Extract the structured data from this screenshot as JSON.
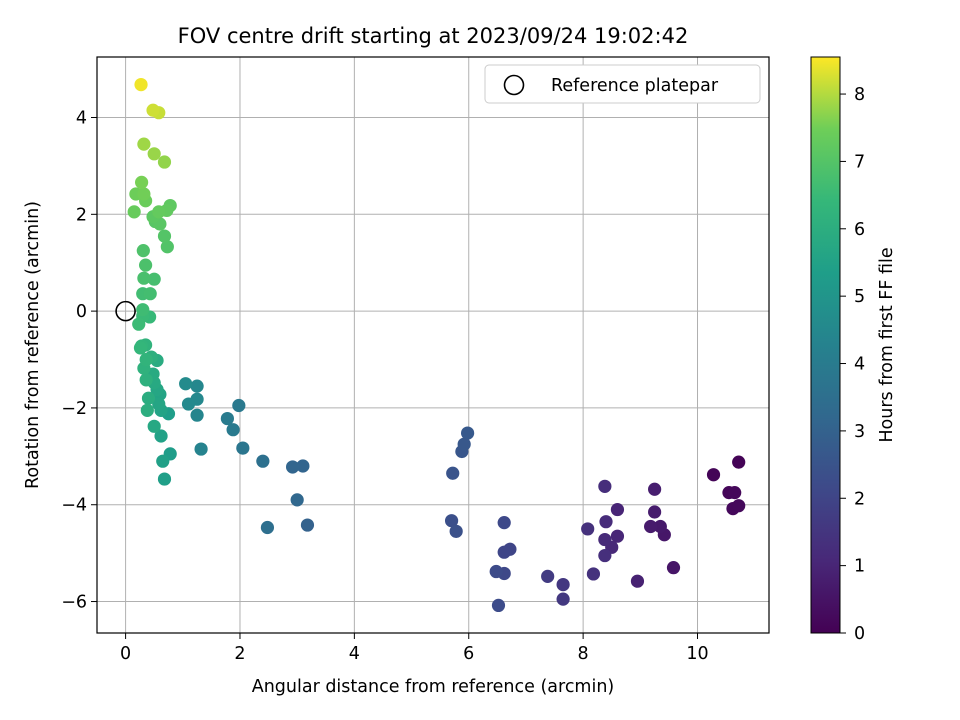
{
  "chart_data": {
    "type": "scatter",
    "title": "FOV centre drift starting at 2023/09/24 19:02:42",
    "xlabel": "Angular distance from reference (arcmin)",
    "ylabel": "Rotation from reference (arcmin)",
    "xlim": [
      -0.5,
      11.25
    ],
    "ylim": [
      -6.65,
      5.25
    ],
    "xticks": [
      0,
      2,
      4,
      6,
      8,
      10
    ],
    "yticks": [
      -6,
      -4,
      -2,
      0,
      2,
      4
    ],
    "grid": true,
    "legend": {
      "position": "top-right",
      "label": "Reference platepar"
    },
    "reference_point": {
      "x": 0,
      "y": 0
    },
    "colorbar": {
      "label": "Hours from first FF file",
      "range": [
        0,
        8.55
      ],
      "ticks": [
        0,
        1,
        2,
        3,
        4,
        5,
        6,
        7,
        8
      ],
      "colormap": "viridis"
    },
    "points": [
      {
        "x": 10.72,
        "y": -3.12,
        "c": 0.05
      },
      {
        "x": 10.28,
        "y": -3.38,
        "c": 0.1
      },
      {
        "x": 10.55,
        "y": -3.75,
        "c": 0.15
      },
      {
        "x": 10.65,
        "y": -3.75,
        "c": 0.18
      },
      {
        "x": 10.62,
        "y": -4.08,
        "c": 0.2
      },
      {
        "x": 10.72,
        "y": -4.02,
        "c": 0.22
      },
      {
        "x": 9.58,
        "y": -5.3,
        "c": 0.55
      },
      {
        "x": 9.42,
        "y": -4.62,
        "c": 0.6
      },
      {
        "x": 9.35,
        "y": -4.45,
        "c": 0.65
      },
      {
        "x": 9.18,
        "y": -4.45,
        "c": 0.7
      },
      {
        "x": 9.25,
        "y": -4.15,
        "c": 0.75
      },
      {
        "x": 9.25,
        "y": -3.68,
        "c": 0.8
      },
      {
        "x": 8.95,
        "y": -5.58,
        "c": 0.9
      },
      {
        "x": 8.6,
        "y": -4.1,
        "c": 1.0
      },
      {
        "x": 8.6,
        "y": -4.65,
        "c": 1.05
      },
      {
        "x": 8.5,
        "y": -4.88,
        "c": 1.1
      },
      {
        "x": 8.38,
        "y": -4.72,
        "c": 1.15
      },
      {
        "x": 8.4,
        "y": -4.35,
        "c": 1.2
      },
      {
        "x": 8.38,
        "y": -3.62,
        "c": 1.25
      },
      {
        "x": 8.38,
        "y": -5.05,
        "c": 1.3
      },
      {
        "x": 8.08,
        "y": -4.5,
        "c": 1.35
      },
      {
        "x": 8.18,
        "y": -5.43,
        "c": 1.4
      },
      {
        "x": 7.65,
        "y": -5.65,
        "c": 1.55
      },
      {
        "x": 7.65,
        "y": -5.95,
        "c": 1.6
      },
      {
        "x": 7.38,
        "y": -5.48,
        "c": 1.7
      },
      {
        "x": 6.72,
        "y": -4.92,
        "c": 2.0
      },
      {
        "x": 6.62,
        "y": -4.98,
        "c": 2.05
      },
      {
        "x": 6.62,
        "y": -5.42,
        "c": 2.1
      },
      {
        "x": 6.62,
        "y": -4.37,
        "c": 2.15
      },
      {
        "x": 6.48,
        "y": -5.38,
        "c": 2.2
      },
      {
        "x": 6.52,
        "y": -6.08,
        "c": 2.25
      },
      {
        "x": 5.7,
        "y": -4.33,
        "c": 2.35
      },
      {
        "x": 5.78,
        "y": -4.55,
        "c": 2.4
      },
      {
        "x": 5.72,
        "y": -3.35,
        "c": 2.5
      },
      {
        "x": 5.88,
        "y": -2.9,
        "c": 2.6
      },
      {
        "x": 5.92,
        "y": -2.75,
        "c": 2.65
      },
      {
        "x": 5.98,
        "y": -2.52,
        "c": 2.7
      },
      {
        "x": 3.18,
        "y": -4.42,
        "c": 3.0
      },
      {
        "x": 3.1,
        "y": -3.2,
        "c": 3.1
      },
      {
        "x": 2.92,
        "y": -3.22,
        "c": 3.15
      },
      {
        "x": 3.0,
        "y": -3.9,
        "c": 3.2
      },
      {
        "x": 2.48,
        "y": -4.47,
        "c": 3.5
      },
      {
        "x": 2.4,
        "y": -3.1,
        "c": 3.55
      },
      {
        "x": 2.05,
        "y": -2.83,
        "c": 3.8
      },
      {
        "x": 1.98,
        "y": -1.95,
        "c": 3.9
      },
      {
        "x": 1.88,
        "y": -2.45,
        "c": 3.95
      },
      {
        "x": 1.78,
        "y": -2.22,
        "c": 4.0
      },
      {
        "x": 1.32,
        "y": -2.85,
        "c": 4.3
      },
      {
        "x": 1.25,
        "y": -2.15,
        "c": 4.4
      },
      {
        "x": 1.25,
        "y": -1.55,
        "c": 4.45
      },
      {
        "x": 1.25,
        "y": -1.82,
        "c": 4.5
      },
      {
        "x": 1.1,
        "y": -1.92,
        "c": 4.55
      },
      {
        "x": 1.05,
        "y": -1.5,
        "c": 4.6
      },
      {
        "x": 0.78,
        "y": -2.95,
        "c": 5.3
      },
      {
        "x": 0.75,
        "y": -2.12,
        "c": 5.35
      },
      {
        "x": 0.68,
        "y": -3.47,
        "c": 5.4
      },
      {
        "x": 0.65,
        "y": -3.1,
        "c": 5.45
      },
      {
        "x": 0.62,
        "y": -2.58,
        "c": 5.5
      },
      {
        "x": 0.62,
        "y": -2.05,
        "c": 5.55
      },
      {
        "x": 0.6,
        "y": -1.72,
        "c": 5.6
      },
      {
        "x": 0.58,
        "y": -1.92,
        "c": 5.65
      },
      {
        "x": 0.55,
        "y": -1.62,
        "c": 5.7
      },
      {
        "x": 0.5,
        "y": -2.38,
        "c": 5.75
      },
      {
        "x": 0.5,
        "y": -1.48,
        "c": 5.8
      },
      {
        "x": 0.48,
        "y": -1.3,
        "c": 5.85
      },
      {
        "x": 0.55,
        "y": -1.02,
        "c": 5.9
      },
      {
        "x": 0.4,
        "y": -1.8,
        "c": 5.95
      },
      {
        "x": 0.38,
        "y": -2.05,
        "c": 6.0
      },
      {
        "x": 0.45,
        "y": -0.95,
        "c": 6.05
      },
      {
        "x": 0.36,
        "y": -1.42,
        "c": 6.1
      },
      {
        "x": 0.32,
        "y": -1.18,
        "c": 6.15
      },
      {
        "x": 0.35,
        "y": -0.7,
        "c": 6.2
      },
      {
        "x": 0.36,
        "y": -1.0,
        "c": 6.25
      },
      {
        "x": 0.28,
        "y": -0.72,
        "c": 6.3
      },
      {
        "x": 0.26,
        "y": -0.76,
        "c": 6.35
      },
      {
        "x": 0.42,
        "y": -0.12,
        "c": 6.45
      },
      {
        "x": 0.3,
        "y": -0.1,
        "c": 6.5
      },
      {
        "x": 0.23,
        "y": -0.27,
        "c": 6.55
      },
      {
        "x": 0.3,
        "y": 0.03,
        "c": 6.6
      },
      {
        "x": 0.3,
        "y": 0.36,
        "c": 6.65
      },
      {
        "x": 0.43,
        "y": 0.36,
        "c": 6.7
      },
      {
        "x": 0.5,
        "y": 0.66,
        "c": 6.75
      },
      {
        "x": 0.32,
        "y": 0.68,
        "c": 6.8
      },
      {
        "x": 0.35,
        "y": 0.95,
        "c": 6.85
      },
      {
        "x": 0.31,
        "y": 1.25,
        "c": 6.9
      },
      {
        "x": 0.73,
        "y": 1.33,
        "c": 6.95
      },
      {
        "x": 0.68,
        "y": 1.55,
        "c": 7.0
      },
      {
        "x": 0.52,
        "y": 1.85,
        "c": 7.05
      },
      {
        "x": 0.6,
        "y": 1.8,
        "c": 7.1
      },
      {
        "x": 0.48,
        "y": 1.95,
        "c": 7.15
      },
      {
        "x": 0.78,
        "y": 2.18,
        "c": 7.2
      },
      {
        "x": 0.72,
        "y": 2.08,
        "c": 7.25
      },
      {
        "x": 0.58,
        "y": 2.05,
        "c": 7.3
      },
      {
        "x": 0.15,
        "y": 2.05,
        "c": 7.35
      },
      {
        "x": 0.35,
        "y": 2.28,
        "c": 7.4
      },
      {
        "x": 0.18,
        "y": 2.42,
        "c": 7.45
      },
      {
        "x": 0.32,
        "y": 2.42,
        "c": 7.5
      },
      {
        "x": 0.28,
        "y": 2.66,
        "c": 7.55
      },
      {
        "x": 0.68,
        "y": 3.08,
        "c": 7.75
      },
      {
        "x": 0.5,
        "y": 3.25,
        "c": 7.8
      },
      {
        "x": 0.32,
        "y": 3.45,
        "c": 7.85
      },
      {
        "x": 0.58,
        "y": 4.1,
        "c": 8.15
      },
      {
        "x": 0.48,
        "y": 4.15,
        "c": 8.2
      },
      {
        "x": 0.27,
        "y": 4.68,
        "c": 8.45
      }
    ]
  }
}
